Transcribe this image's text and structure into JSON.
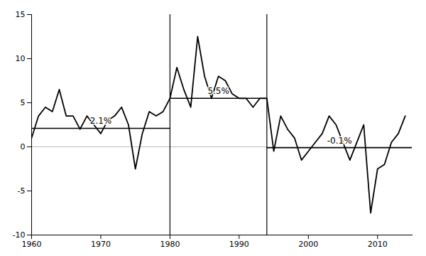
{
  "chart_data": {
    "type": "line",
    "x": [
      1960,
      1961,
      1962,
      1963,
      1964,
      1965,
      1966,
      1967,
      1968,
      1969,
      1970,
      1971,
      1972,
      1973,
      1974,
      1975,
      1976,
      1977,
      1978,
      1979,
      1980,
      1981,
      1982,
      1983,
      1984,
      1985,
      1986,
      1987,
      1988,
      1989,
      1990,
      1991,
      1992,
      1993,
      1994,
      1995,
      1996,
      1997,
      1998,
      1999,
      2000,
      2001,
      2002,
      2003,
      2004,
      2005,
      2006,
      2007,
      2008,
      2009,
      2010,
      2011,
      2012,
      2013,
      2014
    ],
    "values": [
      1.0,
      3.5,
      4.5,
      4.0,
      6.5,
      3.5,
      3.5,
      2.0,
      3.5,
      2.5,
      1.5,
      3.0,
      3.5,
      4.5,
      2.5,
      -2.5,
      1.5,
      4.0,
      3.5,
      4.0,
      5.5,
      9.0,
      6.5,
      4.5,
      12.5,
      8.0,
      5.5,
      8.0,
      7.5,
      6.0,
      5.5,
      5.5,
      4.5,
      5.5,
      5.5,
      -0.5,
      3.5,
      2.0,
      1.0,
      -1.5,
      -0.5,
      0.5,
      1.5,
      3.5,
      2.5,
      0.5,
      -1.5,
      0.5,
      2.5,
      -7.5,
      -2.5,
      -2.0,
      0.5,
      1.5,
      3.5
    ],
    "color": "#000000",
    "periods": [
      {
        "start": 1960,
        "end": 1980,
        "value": 2.1,
        "label": "2.1%",
        "color": "#000000"
      },
      {
        "start": 1980,
        "end": 1994,
        "value": 5.5,
        "label": "5.5%",
        "color": "#000000"
      },
      {
        "start": 1994,
        "end": 2015,
        "value": -0.1,
        "label": "-0.1%",
        "color": "#000000"
      }
    ],
    "reference_lines": [
      {
        "axis": "y",
        "value": 0,
        "color": "#aaaaaa"
      },
      {
        "axis": "x",
        "value": 1980,
        "color": "#000000"
      },
      {
        "axis": "x",
        "value": 1994,
        "color": "#000000"
      }
    ],
    "xlim": [
      1960,
      2015
    ],
    "ylim": [
      -10,
      15
    ],
    "xticks": [
      1960,
      1970,
      1980,
      1990,
      2000,
      2010
    ],
    "yticks": [
      -10,
      -5,
      0,
      5,
      10,
      15
    ],
    "grid": false
  }
}
